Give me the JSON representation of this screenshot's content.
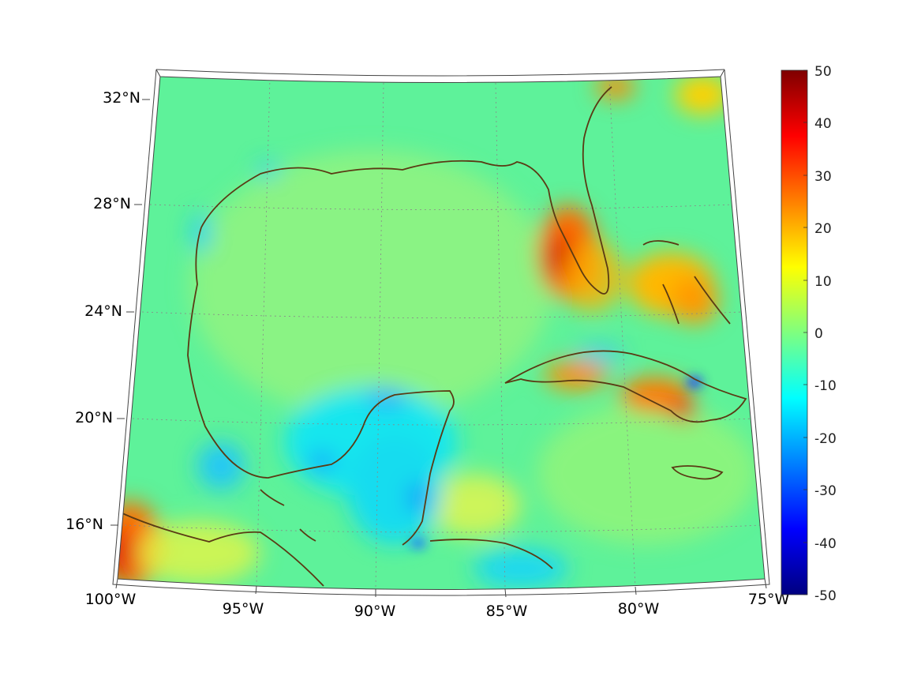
{
  "map": {
    "latitude_labels": [
      "32°N",
      "28°N",
      "24°N",
      "20°N",
      "16°N"
    ],
    "longitude_labels": [
      "100°W",
      "95°W",
      "90°W",
      "85°W",
      "80°W",
      "75°W"
    ],
    "colors": {
      "coastline": "#5a3a14",
      "graticule": "#888888",
      "background_field": "#5ef29a"
    },
    "features": [
      "Gulf of Mexico",
      "Florida peninsula",
      "Yucatan Peninsula",
      "Cuba",
      "Jamaica",
      "Bahamas"
    ]
  },
  "colorbar": {
    "tick_labels": [
      "50",
      "40",
      "30",
      "20",
      "10",
      "0",
      "-10",
      "-20",
      "-30",
      "-40",
      "-50"
    ],
    "min": -50,
    "max": 50,
    "colormap": "jet",
    "colors": [
      "#00007f",
      "#0000ff",
      "#007fff",
      "#00ffff",
      "#7fff7f",
      "#ffff00",
      "#ff7f00",
      "#ff0000",
      "#7f0000"
    ]
  }
}
